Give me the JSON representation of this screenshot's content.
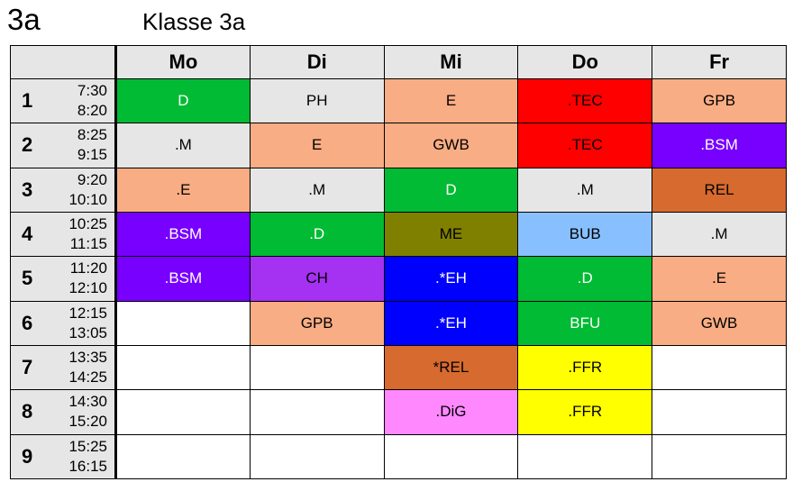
{
  "header": {
    "class_code": "3a",
    "class_title": "Klasse 3a"
  },
  "days": [
    "Mo",
    "Di",
    "Mi",
    "Do",
    "Fr"
  ],
  "periods": [
    {
      "num": "1",
      "start": "7:30",
      "end": "8:20"
    },
    {
      "num": "2",
      "start": "8:25",
      "end": "9:15"
    },
    {
      "num": "3",
      "start": "9:20",
      "end": "10:10"
    },
    {
      "num": "4",
      "start": "10:25",
      "end": "11:15"
    },
    {
      "num": "5",
      "start": "11:20",
      "end": "12:10"
    },
    {
      "num": "6",
      "start": "12:15",
      "end": "13:05"
    },
    {
      "num": "7",
      "start": "13:35",
      "end": "14:25"
    },
    {
      "num": "8",
      "start": "14:30",
      "end": "15:20"
    },
    {
      "num": "9",
      "start": "15:25",
      "end": "16:15"
    }
  ],
  "colors": {
    "green": "#00bb33",
    "light_grey": "#e6e6e6",
    "salmon": "#f9ad84",
    "red": "#ff0000",
    "purple": "#7700ff",
    "brown": "#d76a2f",
    "olive": "#808000",
    "light_blue": "#88c0ff",
    "violet": "#a531f2",
    "blue": "#0000ff",
    "yellow": "#ffff00",
    "pink": "#ff88ff",
    "white": "#ffffff"
  },
  "schedule": [
    [
      {
        "subject": "D",
        "color": "green",
        "text": "white"
      },
      {
        "subject": "PH",
        "color": "light_grey",
        "text": "black"
      },
      {
        "subject": "E",
        "color": "salmon",
        "text": "black"
      },
      {
        "subject": ".TEC",
        "color": "red",
        "text": "black"
      },
      {
        "subject": "GPB",
        "color": "salmon",
        "text": "black"
      }
    ],
    [
      {
        "subject": ".M",
        "color": "light_grey",
        "text": "black"
      },
      {
        "subject": "E",
        "color": "salmon",
        "text": "black"
      },
      {
        "subject": "GWB",
        "color": "salmon",
        "text": "black"
      },
      {
        "subject": ".TEC",
        "color": "red",
        "text": "black"
      },
      {
        "subject": ".BSM",
        "color": "purple",
        "text": "white"
      }
    ],
    [
      {
        "subject": ".E",
        "color": "salmon",
        "text": "black"
      },
      {
        "subject": ".M",
        "color": "light_grey",
        "text": "black"
      },
      {
        "subject": "D",
        "color": "green",
        "text": "white"
      },
      {
        "subject": ".M",
        "color": "light_grey",
        "text": "black"
      },
      {
        "subject": "REL",
        "color": "brown",
        "text": "black"
      }
    ],
    [
      {
        "subject": ".BSM",
        "color": "purple",
        "text": "white"
      },
      {
        "subject": ".D",
        "color": "green",
        "text": "white"
      },
      {
        "subject": "ME",
        "color": "olive",
        "text": "black"
      },
      {
        "subject": "BUB",
        "color": "light_blue",
        "text": "black"
      },
      {
        "subject": ".M",
        "color": "light_grey",
        "text": "black"
      }
    ],
    [
      {
        "subject": ".BSM",
        "color": "purple",
        "text": "white"
      },
      {
        "subject": "CH",
        "color": "violet",
        "text": "black"
      },
      {
        "subject": ".*EH",
        "color": "blue",
        "text": "white"
      },
      {
        "subject": ".D",
        "color": "green",
        "text": "white"
      },
      {
        "subject": ".E",
        "color": "salmon",
        "text": "black"
      }
    ],
    [
      {
        "subject": "",
        "color": "white",
        "text": "black"
      },
      {
        "subject": "GPB",
        "color": "salmon",
        "text": "black"
      },
      {
        "subject": ".*EH",
        "color": "blue",
        "text": "white"
      },
      {
        "subject": "BFU",
        "color": "green",
        "text": "white"
      },
      {
        "subject": "GWB",
        "color": "salmon",
        "text": "black"
      }
    ],
    [
      {
        "subject": "",
        "color": "white",
        "text": "black"
      },
      {
        "subject": "",
        "color": "white",
        "text": "black"
      },
      {
        "subject": "*REL",
        "color": "brown",
        "text": "black"
      },
      {
        "subject": ".FFR",
        "color": "yellow",
        "text": "black"
      },
      {
        "subject": "",
        "color": "white",
        "text": "black"
      }
    ],
    [
      {
        "subject": "",
        "color": "white",
        "text": "black"
      },
      {
        "subject": "",
        "color": "white",
        "text": "black"
      },
      {
        "subject": ".DiG",
        "color": "pink",
        "text": "black"
      },
      {
        "subject": ".FFR",
        "color": "yellow",
        "text": "black"
      },
      {
        "subject": "",
        "color": "white",
        "text": "black"
      }
    ],
    [
      {
        "subject": "",
        "color": "white",
        "text": "black"
      },
      {
        "subject": "",
        "color": "white",
        "text": "black"
      },
      {
        "subject": "",
        "color": "white",
        "text": "black"
      },
      {
        "subject": "",
        "color": "white",
        "text": "black"
      },
      {
        "subject": "",
        "color": "white",
        "text": "black"
      }
    ]
  ]
}
